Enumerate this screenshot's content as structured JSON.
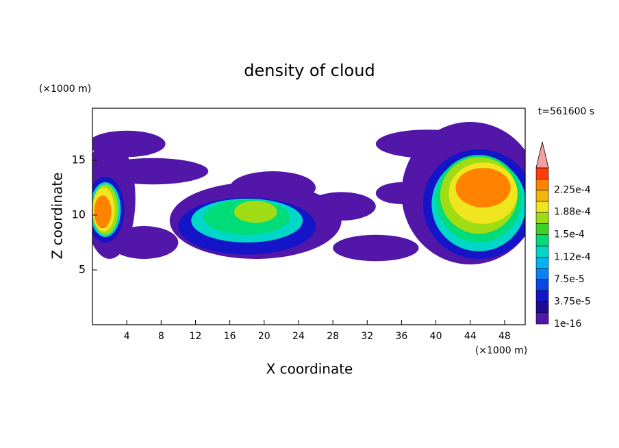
{
  "chart_data": {
    "type": "contour",
    "title": "density of cloud",
    "x_label": "X coordinate",
    "y_label": "Z coordinate",
    "x_unit": "(×1000 m)",
    "y_unit": "(×1000 m)",
    "annotation": "t=561600 s",
    "xlim": [
      0,
      50.4
    ],
    "ylim": [
      0,
      19.75
    ],
    "xticks": [
      4,
      8,
      12,
      16,
      20,
      24,
      28,
      32,
      36,
      40,
      44,
      48
    ],
    "yticks": [
      5,
      10,
      15
    ],
    "colorbar": {
      "levels": [
        1e-16,
        1.875e-05,
        3.75e-05,
        5.625e-05,
        7.5e-05,
        9.375e-05,
        0.0001125,
        0.00013125,
        0.00015,
        0.00016875,
        0.0001875,
        0.00020625,
        0.000225,
        0.00024375,
        0.0002625
      ],
      "colors": [
        "#5216a8",
        "#1c0a96",
        "#1414c8",
        "#0a46e6",
        "#0a82f5",
        "#00b4f0",
        "#00d7c8",
        "#00dc78",
        "#3cd228",
        "#a0dc14",
        "#f0e61e",
        "#f5b40a",
        "#ff8200",
        "#ff3c0a"
      ],
      "extend_color": "#f5a0a0",
      "ticks": [
        1e-16,
        {
          "value": 3.75e-05,
          "label": "3.75e-5"
        },
        {
          "value": 7.5e-05,
          "label": "7.5e-5"
        },
        {
          "value": 0.000112,
          "label": "1.12e-4"
        },
        {
          "value": 0.00015,
          "label": "1.5e-4"
        },
        {
          "value": 0.000188,
          "label": "1.88e-4"
        },
        {
          "value": 0.000225,
          "label": "2.25e-4"
        }
      ]
    },
    "blobs": [
      {
        "x": 4,
        "z": 16.5,
        "rx": 4.5,
        "rz": 1.2,
        "value": 1e-05
      },
      {
        "x": 2,
        "z": 11.5,
        "rx": 3,
        "rz": 5.5,
        "value": 1e-05
      },
      {
        "x": 7,
        "z": 14,
        "rx": 6.5,
        "rz": 1.2,
        "value": 1e-05
      },
      {
        "x": 6,
        "z": 7.5,
        "rx": 4,
        "rz": 1.5,
        "value": 1e-05
      },
      {
        "x": 19,
        "z": 9.5,
        "rx": 10,
        "rz": 3.5,
        "value": 1e-05
      },
      {
        "x": 21,
        "z": 12.5,
        "rx": 5,
        "rz": 1.5,
        "value": 1e-05
      },
      {
        "x": 29,
        "z": 10.8,
        "rx": 4,
        "rz": 1.3,
        "value": 1e-05
      },
      {
        "x": 33,
        "z": 7,
        "rx": 5,
        "rz": 1.2,
        "value": 1e-05
      },
      {
        "x": 36,
        "z": 12,
        "rx": 3,
        "rz": 1,
        "value": 1e-05
      },
      {
        "x": 39,
        "z": 16.5,
        "rx": 6,
        "rz": 1.3,
        "value": 1e-05
      },
      {
        "x": 44,
        "z": 12,
        "rx": 8,
        "rz": 6.5,
        "value": 1e-05
      },
      {
        "x": 1.5,
        "z": 10.5,
        "rx": 2.2,
        "rz": 3,
        "value": 5e-05
      },
      {
        "x": 18,
        "z": 9,
        "rx": 8,
        "rz": 2.6,
        "value": 5e-05
      },
      {
        "x": 45,
        "z": 11,
        "rx": 6.5,
        "rz": 5,
        "value": 5e-05
      },
      {
        "x": 1.5,
        "z": 10.5,
        "rx": 1.8,
        "rz": 2.5,
        "value": 0.00012
      },
      {
        "x": 18,
        "z": 9.5,
        "rx": 6.5,
        "rz": 2,
        "value": 0.00012
      },
      {
        "x": 45,
        "z": 11,
        "rx": 5.5,
        "rz": 4.3,
        "value": 0.00012
      },
      {
        "x": 18,
        "z": 9.8,
        "rx": 5,
        "rz": 1.6,
        "value": 0.00014
      },
      {
        "x": 45,
        "z": 11.5,
        "rx": 5,
        "rz": 4,
        "value": 0.00014
      },
      {
        "x": 19,
        "z": 10.3,
        "rx": 2.5,
        "rz": 1,
        "value": 0.00017
      },
      {
        "x": 45,
        "z": 11.8,
        "rx": 4.5,
        "rz": 3.5,
        "value": 0.00017
      },
      {
        "x": 1.5,
        "z": 10.5,
        "rx": 1.5,
        "rz": 2.3,
        "value": 0.00017
      },
      {
        "x": 45.5,
        "z": 12,
        "rx": 4,
        "rz": 2.8,
        "value": 0.0002
      },
      {
        "x": 1.3,
        "z": 10.5,
        "rx": 1.3,
        "rz": 2,
        "value": 0.0002
      },
      {
        "x": 45.5,
        "z": 12.5,
        "rx": 3.2,
        "rz": 1.8,
        "value": 0.00023
      },
      {
        "x": 1.2,
        "z": 10.3,
        "rx": 1,
        "rz": 1.5,
        "value": 0.00023
      }
    ]
  }
}
